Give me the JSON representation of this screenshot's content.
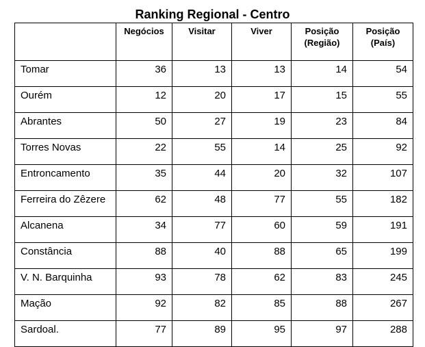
{
  "title": "Ranking Regional - Centro",
  "columns": [
    "",
    "Negócios",
    "Visitar",
    "Viver",
    "Posição (Região)",
    "Posição (País)"
  ],
  "rows": [
    {
      "name": "Tomar",
      "negocios": "36",
      "visitar": "13",
      "viver": "13",
      "pos_regiao": "14",
      "pos_pais": "54"
    },
    {
      "name": "Ourém",
      "negocios": "12",
      "visitar": "20",
      "viver": "17",
      "pos_regiao": "15",
      "pos_pais": "55"
    },
    {
      "name": "Abrantes",
      "negocios": "50",
      "visitar": "27",
      "viver": "19",
      "pos_regiao": "23",
      "pos_pais": "84"
    },
    {
      "name": "Torres Novas",
      "negocios": "22",
      "visitar": "55",
      "viver": "14",
      "pos_regiao": "25",
      "pos_pais": "92"
    },
    {
      "name": "Entroncamento",
      "negocios": "35",
      "visitar": "44",
      "viver": "20",
      "pos_regiao": "32",
      "pos_pais": "107"
    },
    {
      "name": "Ferreira do Zêzere",
      "negocios": "62",
      "visitar": "48",
      "viver": "77",
      "pos_regiao": "55",
      "pos_pais": "182"
    },
    {
      "name": "Alcanena",
      "negocios": "34",
      "visitar": "77",
      "viver": "60",
      "pos_regiao": "59",
      "pos_pais": "191"
    },
    {
      "name": "Constância",
      "negocios": "88",
      "visitar": "40",
      "viver": "88",
      "pos_regiao": "65",
      "pos_pais": "199"
    },
    {
      "name": "V. N. Barquinha",
      "negocios": "93",
      "visitar": "78",
      "viver": "62",
      "pos_regiao": "83",
      "pos_pais": "245"
    },
    {
      "name": "Mação",
      "negocios": "92",
      "visitar": "82",
      "viver": "85",
      "pos_regiao": "88",
      "pos_pais": "267"
    },
    {
      "name": "Sardoal.",
      "negocios": "77",
      "visitar": "89",
      "viver": "95",
      "pos_regiao": "97",
      "pos_pais": "288"
    }
  ]
}
